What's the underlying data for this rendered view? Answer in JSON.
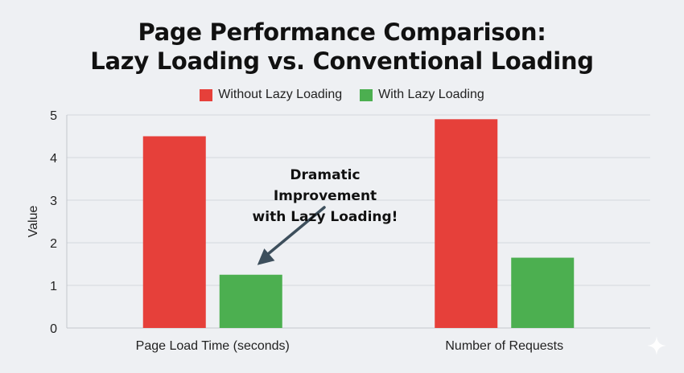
{
  "chart_data": {
    "type": "bar",
    "title": [
      "Page Performance Comparison:",
      "Lazy Loading vs. Conventional Loading"
    ],
    "categories": [
      "Page Load Time (seconds)",
      "Number of Requests"
    ],
    "series": [
      {
        "name": "Without Lazy Loading",
        "color": "#e6403a",
        "values": [
          4.5,
          4.9
        ]
      },
      {
        "name": "With Lazy Loading",
        "color": "#4caf50",
        "values": [
          1.25,
          1.65
        ]
      }
    ],
    "ylabel": "Value",
    "ylim": [
      0,
      5
    ],
    "yticks": [
      0,
      1,
      2,
      3,
      4,
      5
    ],
    "grid": true,
    "legend": "top-center",
    "annotation": {
      "text": [
        "Dramatic Improvement",
        "with Lazy Loading!"
      ],
      "target_category": "Page Load Time (seconds)",
      "target_series": "With Lazy Loading",
      "arrow_color": "#3d4f5c"
    }
  }
}
